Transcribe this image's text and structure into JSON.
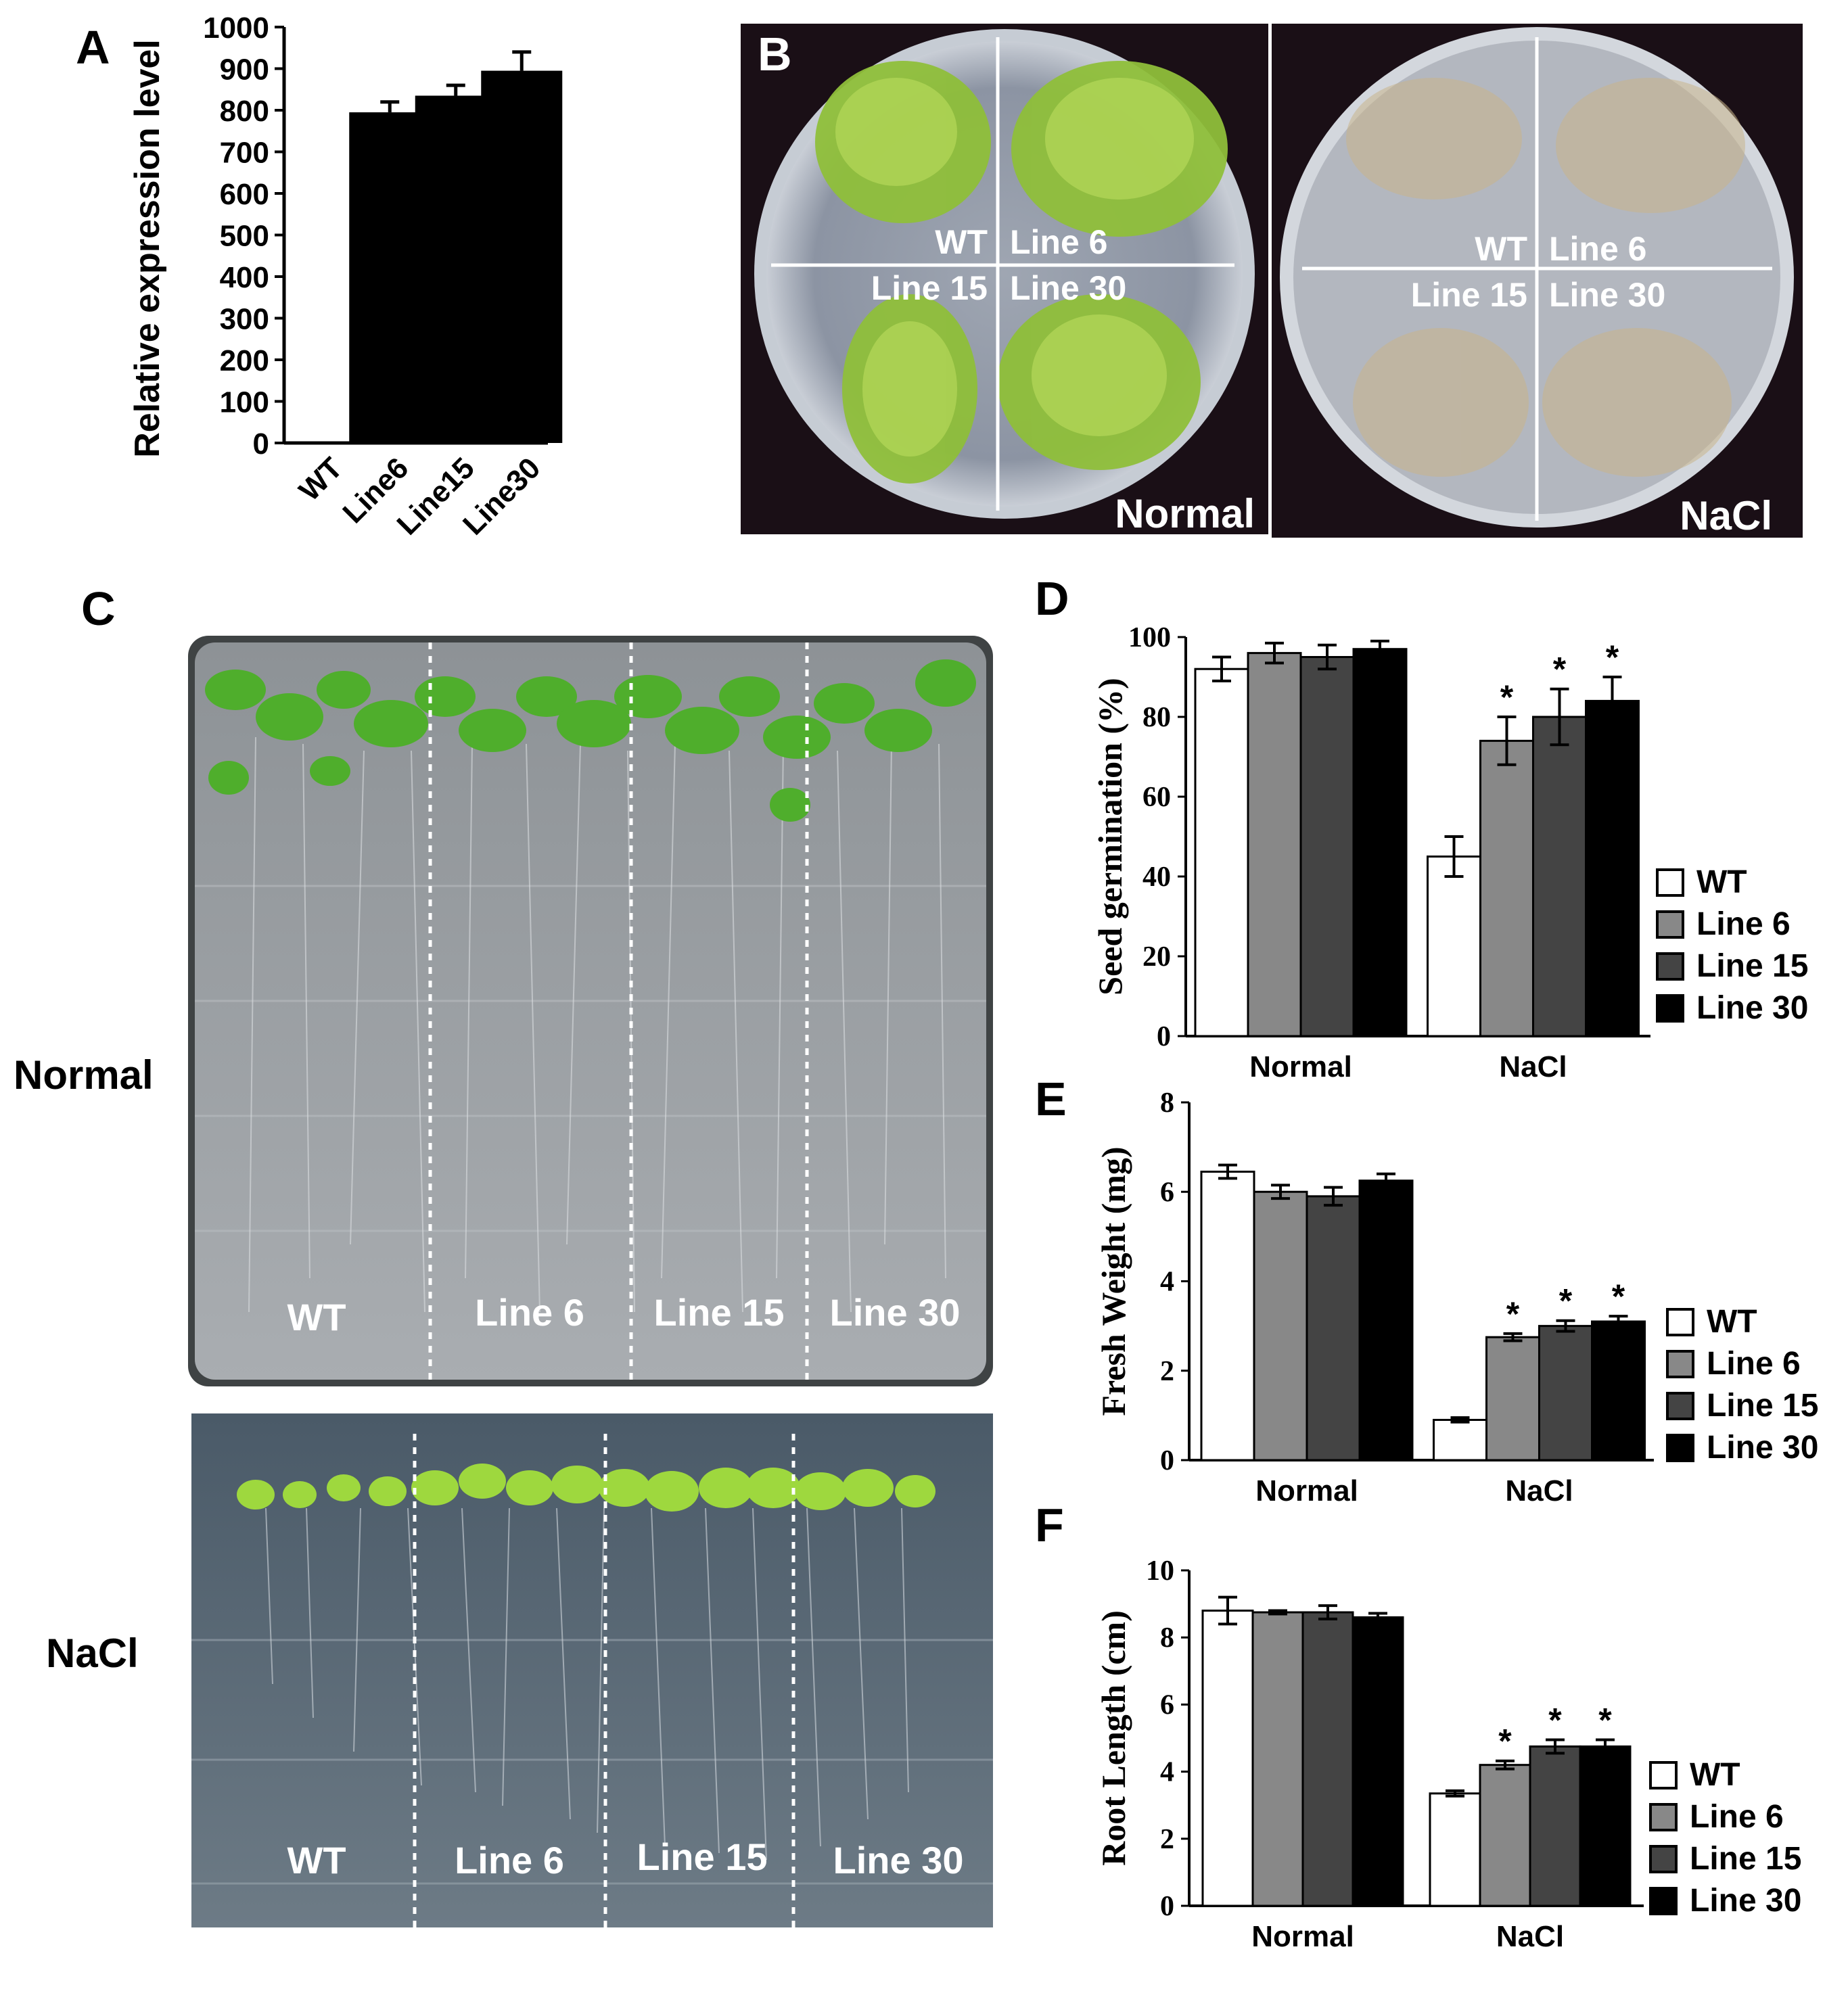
{
  "panels": {
    "A": {
      "letter": "A",
      "chart_data": {
        "type": "bar",
        "categories": [
          "WT",
          "Line6",
          "Line15",
          "Line30"
        ],
        "values": [
          3,
          795,
          835,
          895
        ],
        "errors": [
          0,
          25,
          25,
          45
        ],
        "ylabel": "Relative expression level",
        "ylim": [
          0,
          1000
        ],
        "yticks": [
          0,
          100,
          200,
          300,
          400,
          500,
          600,
          700,
          800,
          900,
          1000
        ],
        "bar_color": "#000000"
      }
    },
    "B": {
      "letter": "B",
      "plates": [
        {
          "condition": "Normal",
          "labels": [
            "WT",
            "Line 6",
            "Line 15",
            "Line 30"
          ]
        },
        {
          "condition": "NaCl",
          "labels": [
            "WT",
            "Line 6",
            "Line 15",
            "Line 30"
          ]
        }
      ]
    },
    "C": {
      "letter": "C",
      "rows": [
        {
          "condition": "Normal",
          "labels": [
            "WT",
            "Line 6",
            "Line 15",
            "Line 30"
          ]
        },
        {
          "condition": "NaCl",
          "labels": [
            "WT",
            "Line 6",
            "Line 15",
            "Line 30"
          ]
        }
      ]
    },
    "D": {
      "letter": "D",
      "chart_data": {
        "type": "bar",
        "categories": [
          "Normal",
          "NaCl"
        ],
        "series": [
          {
            "name": "WT",
            "color": "#ffffff",
            "values": [
              92,
              45
            ],
            "errors": [
              3,
              5
            ],
            "sig": [
              "",
              ""
            ]
          },
          {
            "name": "Line 6",
            "color": "#888888",
            "values": [
              96,
              74
            ],
            "errors": [
              2.5,
              6
            ],
            "sig": [
              "",
              "*"
            ]
          },
          {
            "name": "Line 15",
            "color": "#444444",
            "values": [
              95,
              80
            ],
            "errors": [
              3,
              7
            ],
            "sig": [
              "",
              "*"
            ]
          },
          {
            "name": "Line 30",
            "color": "#000000",
            "values": [
              97,
              84
            ],
            "errors": [
              2,
              6
            ],
            "sig": [
              "",
              "*"
            ]
          }
        ],
        "ylabel": "Seed germination (%)",
        "ylim": [
          0,
          100
        ],
        "yticks": [
          0,
          20,
          40,
          60,
          80,
          100
        ]
      }
    },
    "E": {
      "letter": "E",
      "chart_data": {
        "type": "bar",
        "categories": [
          "Normal",
          "NaCl"
        ],
        "series": [
          {
            "name": "WT",
            "color": "#ffffff",
            "values": [
              6.45,
              0.9
            ],
            "errors": [
              0.15,
              0.05
            ],
            "sig": [
              "",
              ""
            ]
          },
          {
            "name": "Line 6",
            "color": "#888888",
            "values": [
              6.0,
              2.75
            ],
            "errors": [
              0.15,
              0.08
            ],
            "sig": [
              "",
              "*"
            ]
          },
          {
            "name": "Line 15",
            "color": "#444444",
            "values": [
              5.9,
              3.0
            ],
            "errors": [
              0.2,
              0.12
            ],
            "sig": [
              "",
              "*"
            ]
          },
          {
            "name": "Line 30",
            "color": "#000000",
            "values": [
              6.25,
              3.1
            ],
            "errors": [
              0.15,
              0.12
            ],
            "sig": [
              "",
              "*"
            ]
          }
        ],
        "ylabel": "Fresh Weight (mg)",
        "ylim": [
          0,
          8
        ],
        "yticks": [
          0,
          2,
          4,
          6,
          8
        ]
      }
    },
    "F": {
      "letter": "F",
      "chart_data": {
        "type": "bar",
        "categories": [
          "Normal",
          "NaCl"
        ],
        "series": [
          {
            "name": "WT",
            "color": "#ffffff",
            "values": [
              8.8,
              3.35
            ],
            "errors": [
              0.4,
              0.08
            ],
            "sig": [
              "",
              ""
            ]
          },
          {
            "name": "Line 6",
            "color": "#888888",
            "values": [
              8.75,
              4.2
            ],
            "errors": [
              0.05,
              0.12
            ],
            "sig": [
              "",
              "*"
            ]
          },
          {
            "name": "Line 15",
            "color": "#444444",
            "values": [
              8.75,
              4.75
            ],
            "errors": [
              0.2,
              0.2
            ],
            "sig": [
              "",
              "*"
            ]
          },
          {
            "name": "Line 30",
            "color": "#000000",
            "values": [
              8.6,
              4.75
            ],
            "errors": [
              0.12,
              0.2
            ],
            "sig": [
              "",
              "*"
            ]
          }
        ],
        "ylabel": "Root Length (cm)",
        "ylim": [
          0,
          10
        ],
        "yticks": [
          0,
          2,
          4,
          6,
          8,
          10
        ]
      }
    }
  }
}
